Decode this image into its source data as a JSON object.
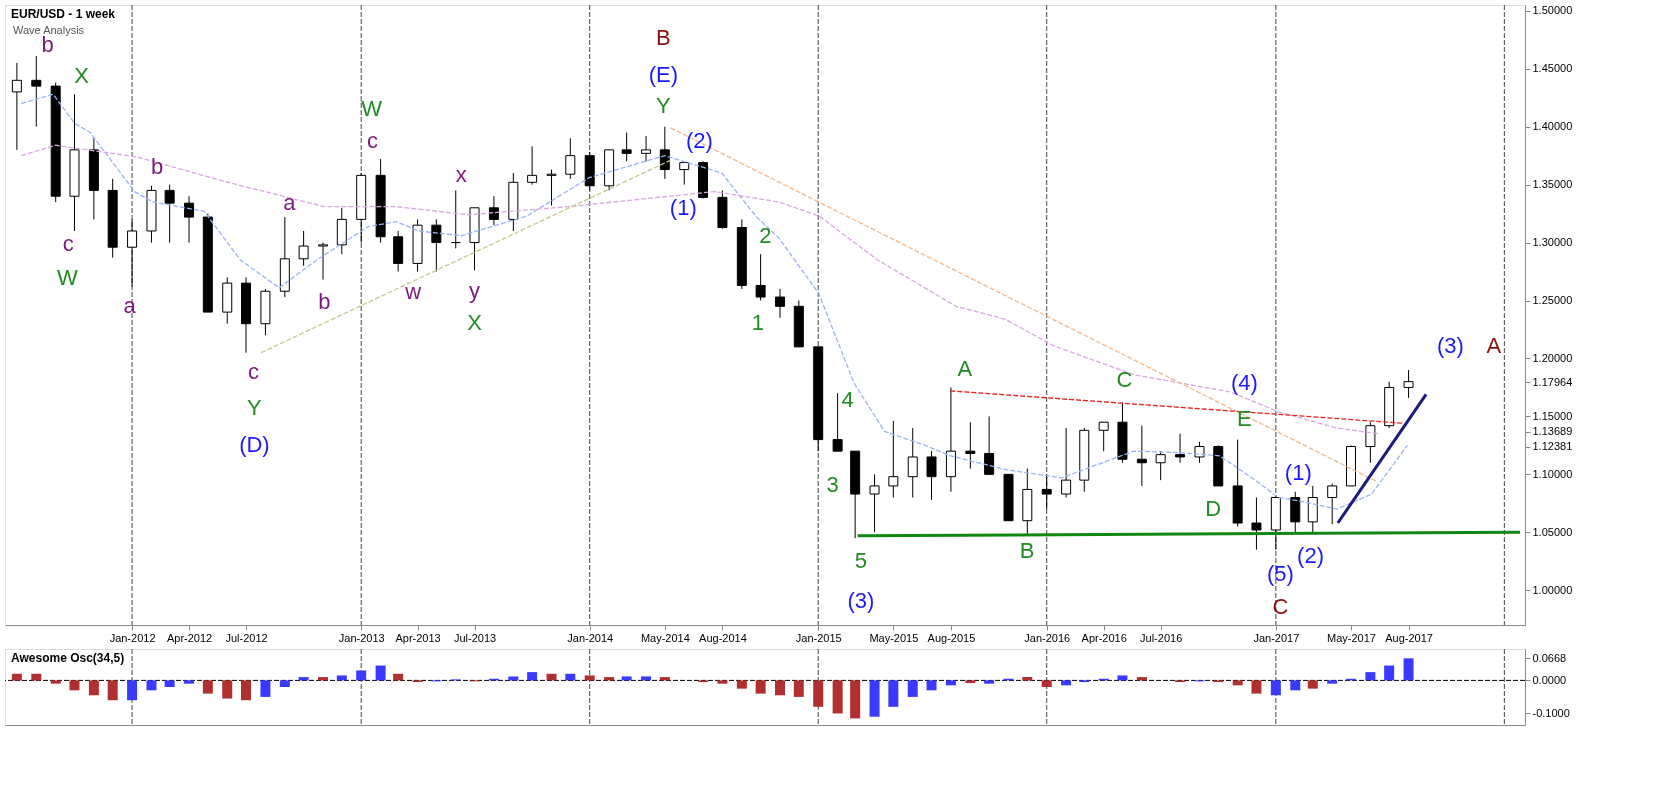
{
  "chart_data": [
    {
      "type": "candlestick",
      "title": "EUR/USD - 1 week",
      "x": [
        "2011-07",
        "2011-08",
        "2011-09",
        "2011-10",
        "2011-11",
        "2011-12",
        "2012-01",
        "2012-02",
        "2012-03",
        "2012-04",
        "2012-05",
        "2012-06",
        "2012-07",
        "2012-08",
        "2012-09",
        "2012-10",
        "2012-11",
        "2012-12",
        "2013-01",
        "2013-02",
        "2013-03",
        "2013-04",
        "2013-05",
        "2013-06",
        "2013-07",
        "2013-08",
        "2013-09",
        "2013-10",
        "2013-11",
        "2013-12",
        "2014-01",
        "2014-02",
        "2014-03",
        "2014-04",
        "2014-05",
        "2014-06",
        "2014-07",
        "2014-08",
        "2014-09",
        "2014-10",
        "2014-11",
        "2014-12",
        "2015-01",
        "2015-02",
        "2015-03",
        "2015-04",
        "2015-05",
        "2015-06",
        "2015-07",
        "2015-08",
        "2015-09",
        "2015-10",
        "2015-11",
        "2015-12",
        "2016-01",
        "2016-02",
        "2016-03",
        "2016-04",
        "2016-05",
        "2016-06",
        "2016-07",
        "2016-08",
        "2016-09",
        "2016-10",
        "2016-11",
        "2016-12",
        "2017-01",
        "2017-02",
        "2017-03",
        "2017-04",
        "2017-05",
        "2017-06",
        "2017-07",
        "2017-08"
      ],
      "ohlc": [
        [
          1.43,
          1.455,
          1.38,
          1.44
        ],
        [
          1.44,
          1.461,
          1.4,
          1.435
        ],
        [
          1.435,
          1.438,
          1.335,
          1.34
        ],
        [
          1.34,
          1.428,
          1.31,
          1.38
        ],
        [
          1.38,
          1.39,
          1.32,
          1.345
        ],
        [
          1.345,
          1.355,
          1.287,
          1.296
        ],
        [
          1.296,
          1.32,
          1.262,
          1.31
        ],
        [
          1.31,
          1.349,
          1.3,
          1.345
        ],
        [
          1.345,
          1.35,
          1.3,
          1.334
        ],
        [
          1.334,
          1.34,
          1.3,
          1.322
        ],
        [
          1.322,
          1.325,
          1.24,
          1.24
        ],
        [
          1.24,
          1.27,
          1.23,
          1.265
        ],
        [
          1.265,
          1.27,
          1.205,
          1.23
        ],
        [
          1.23,
          1.26,
          1.22,
          1.258
        ],
        [
          1.258,
          1.322,
          1.253,
          1.286
        ],
        [
          1.286,
          1.31,
          1.28,
          1.297
        ],
        [
          1.297,
          1.3,
          1.268,
          1.298
        ],
        [
          1.298,
          1.33,
          1.29,
          1.32
        ],
        [
          1.32,
          1.36,
          1.3,
          1.358
        ],
        [
          1.358,
          1.372,
          1.3,
          1.305
        ],
        [
          1.305,
          1.31,
          1.275,
          1.282
        ],
        [
          1.282,
          1.32,
          1.275,
          1.315
        ],
        [
          1.315,
          1.32,
          1.275,
          1.3
        ],
        [
          1.3,
          1.345,
          1.295,
          1.3
        ],
        [
          1.3,
          1.33,
          1.276,
          1.33
        ],
        [
          1.33,
          1.34,
          1.315,
          1.32
        ],
        [
          1.32,
          1.36,
          1.31,
          1.352
        ],
        [
          1.352,
          1.383,
          1.35,
          1.358
        ],
        [
          1.358,
          1.363,
          1.332,
          1.359
        ],
        [
          1.359,
          1.39,
          1.355,
          1.375
        ],
        [
          1.375,
          1.378,
          1.345,
          1.349
        ],
        [
          1.349,
          1.38,
          1.345,
          1.38
        ],
        [
          1.38,
          1.395,
          1.37,
          1.377
        ],
        [
          1.377,
          1.392,
          1.37,
          1.38
        ],
        [
          1.38,
          1.4,
          1.355,
          1.363
        ],
        [
          1.363,
          1.37,
          1.35,
          1.369
        ],
        [
          1.369,
          1.37,
          1.338,
          1.339
        ],
        [
          1.339,
          1.345,
          1.312,
          1.313
        ],
        [
          1.313,
          1.32,
          1.26,
          1.263
        ],
        [
          1.263,
          1.29,
          1.25,
          1.253
        ],
        [
          1.253,
          1.26,
          1.235,
          1.245
        ],
        [
          1.245,
          1.25,
          1.21,
          1.21
        ],
        [
          1.21,
          1.21,
          1.12,
          1.13
        ],
        [
          1.13,
          1.17,
          1.12,
          1.12
        ],
        [
          1.12,
          1.12,
          1.045,
          1.083
        ],
        [
          1.083,
          1.1,
          1.05,
          1.09
        ],
        [
          1.09,
          1.146,
          1.08,
          1.098
        ],
        [
          1.098,
          1.14,
          1.08,
          1.115
        ],
        [
          1.115,
          1.12,
          1.078,
          1.098
        ],
        [
          1.098,
          1.175,
          1.085,
          1.12
        ],
        [
          1.12,
          1.145,
          1.105,
          1.118
        ],
        [
          1.118,
          1.15,
          1.1,
          1.1
        ],
        [
          1.1,
          1.1,
          1.06,
          1.06
        ],
        [
          1.06,
          1.105,
          1.047,
          1.087
        ],
        [
          1.087,
          1.1,
          1.07,
          1.083
        ],
        [
          1.083,
          1.14,
          1.08,
          1.095
        ],
        [
          1.095,
          1.14,
          1.085,
          1.138
        ],
        [
          1.138,
          1.145,
          1.12,
          1.145
        ],
        [
          1.145,
          1.162,
          1.11,
          1.113
        ],
        [
          1.113,
          1.142,
          1.09,
          1.11
        ],
        [
          1.11,
          1.12,
          1.095,
          1.117
        ],
        [
          1.117,
          1.135,
          1.11,
          1.115
        ],
        [
          1.115,
          1.128,
          1.11,
          1.124
        ],
        [
          1.124,
          1.125,
          1.09,
          1.09
        ],
        [
          1.09,
          1.13,
          1.055,
          1.058
        ],
        [
          1.058,
          1.08,
          1.035,
          1.052
        ],
        [
          1.052,
          1.082,
          1.035,
          1.08
        ],
        [
          1.08,
          1.085,
          1.05,
          1.059
        ],
        [
          1.059,
          1.09,
          1.05,
          1.08
        ],
        [
          1.08,
          1.092,
          1.057,
          1.09
        ],
        [
          1.09,
          1.125,
          1.09,
          1.124
        ],
        [
          1.124,
          1.145,
          1.11,
          1.142
        ],
        [
          1.142,
          1.18,
          1.14,
          1.175
        ],
        [
          1.175,
          1.19,
          1.166,
          1.18
        ]
      ],
      "colors": [
        "#ffffff",
        "#000000",
        "#000000",
        "#ffffff",
        "#000000",
        "#000000",
        "#ffffff",
        "#ffffff",
        "#000000",
        "#000000",
        "#000000",
        "#ffffff",
        "#000000",
        "#ffffff",
        "#ffffff",
        "#ffffff",
        "#ffffff",
        "#ffffff",
        "#ffffff",
        "#000000",
        "#000000",
        "#ffffff",
        "#000000",
        "#000000",
        "#ffffff",
        "#000000",
        "#ffffff",
        "#ffffff",
        "#ffffff",
        "#ffffff",
        "#000000",
        "#ffffff",
        "#000000",
        "#ffffff",
        "#000000",
        "#ffffff",
        "#000000",
        "#000000",
        "#000000",
        "#000000",
        "#000000",
        "#000000",
        "#000000",
        "#000000",
        "#000000",
        "#ffffff",
        "#ffffff",
        "#ffffff",
        "#000000",
        "#ffffff",
        "#000000",
        "#000000",
        "#000000",
        "#ffffff",
        "#000000",
        "#ffffff",
        "#ffffff",
        "#ffffff",
        "#000000",
        "#000000",
        "#ffffff",
        "#000000",
        "#ffffff",
        "#000000",
        "#000000",
        "#000000",
        "#ffffff",
        "#000000",
        "#ffffff",
        "#ffffff",
        "#ffffff",
        "#ffffff",
        "#ffffff",
        "#ffffff"
      ],
      "series": [
        {
          "type": "line",
          "color": "#99b3f5",
          "line_style": "dashed",
          "x": [
            "2011-07-08",
            "2011-08-28",
            "2011-10-01",
            "2011-10-26",
            "2012-01-05",
            "2012-02-03",
            "2012-04-25",
            "2012-06-22",
            "2012-08-23",
            "2012-10-22",
            "2013-01-13",
            "2013-02-26",
            "2013-04-03",
            "2013-06-11",
            "2013-09-23",
            "2013-12-31",
            "2014-05-01",
            "2014-07-31",
            "2014-09-23",
            "2014-10-30",
            "2015-01-02",
            "2015-02-27",
            "2015-04-17",
            "2015-06-21",
            "2015-07-31",
            "2015-10-28",
            "2016-01-25",
            "2016-05-19",
            "2016-07-23",
            "2016-10-03",
            "2016-11-29",
            "2017-01-05",
            "2017-02-18",
            "2017-04-08",
            "2017-06-03",
            "2017-07-30"
          ],
          "values": [
            1.42,
            1.428,
            1.403,
            1.395,
            1.344,
            1.335,
            1.327,
            1.285,
            1.261,
            1.285,
            1.314,
            1.318,
            1.31,
            1.306,
            1.323,
            1.356,
            1.375,
            1.36,
            1.323,
            1.304,
            1.256,
            1.179,
            1.137,
            1.125,
            1.116,
            1.104,
            1.097,
            1.12,
            1.119,
            1.116,
            1.095,
            1.08,
            1.076,
            1.07,
            1.083,
            1.125
          ]
        },
        {
          "type": "line",
          "color": "#d8a8e0",
          "line_style": "dashed",
          "x": [
            "2011-07-08",
            "2011-09-01",
            "2012-01-08",
            "2012-05-26",
            "2012-11-03",
            "2013-02-26",
            "2013-06-21",
            "2013-11-28",
            "2014-07-20",
            "2014-10-30",
            "2015-01-02",
            "2015-04-06",
            "2015-08-09",
            "2015-10-26",
            "2016-01-12",
            "2016-05-19",
            "2016-10-21",
            "2017-01-05",
            "2017-04-08",
            "2017-06-14"
          ],
          "values": [
            1.375,
            1.384,
            1.374,
            1.353,
            1.331,
            1.331,
            1.324,
            1.331,
            1.344,
            1.335,
            1.323,
            1.285,
            1.245,
            1.234,
            1.211,
            1.186,
            1.171,
            1.154,
            1.14,
            1.135
          ]
        },
        {
          "type": "line",
          "color": "#c8c890",
          "line_style": "dashed",
          "x": [
            "2012-07-25",
            "2014-05-10"
          ],
          "values": [
            1.205,
            1.371
          ]
        },
        {
          "type": "line",
          "color": "#f5b888",
          "line_style": "dashed",
          "x": [
            "2014-05-10",
            "2017-06-14"
          ],
          "values": [
            1.399,
            1.093
          ]
        },
        {
          "type": "line",
          "color": "#ee2222",
          "line_style": "dashed",
          "x": [
            "2015-07-31",
            "2017-07-25"
          ],
          "values": [
            1.172,
            1.144
          ]
        },
        {
          "type": "line",
          "color": "#118811",
          "line_style": "solid",
          "x": [
            "2015-03-05",
            "2018-01-26"
          ],
          "values": [
            1.047,
            1.05
          ]
        },
        {
          "type": "line",
          "color": "#1a1a80",
          "line_style": "solid",
          "x": [
            "2017-04-10",
            "2017-08-29"
          ],
          "values": [
            1.058,
            1.169
          ]
        }
      ],
      "xlim": [
        "2011-06-20",
        "2018-01-26"
      ],
      "xticks": [
        {
          "value": "2012-01-01",
          "label": "Jan-2012"
        },
        {
          "value": "2012-04-01",
          "label": "Apr-2012"
        },
        {
          "value": "2012-07-01",
          "label": "Jul-2012"
        },
        {
          "value": "2013-01-01",
          "label": "Jan-2013"
        },
        {
          "value": "2013-04-01",
          "label": "Apr-2013"
        },
        {
          "value": "2013-07-01",
          "label": "Jul-2013"
        },
        {
          "value": "2014-01-01",
          "label": "Jan-2014"
        },
        {
          "value": "2014-05-01",
          "label": "May-2014"
        },
        {
          "value": "2014-08-01",
          "label": "Aug-2014"
        },
        {
          "value": "2015-01-01",
          "label": "Jan-2015"
        },
        {
          "value": "2015-05-01",
          "label": "May-2015"
        },
        {
          "value": "2015-08-01",
          "label": "Aug-2015"
        },
        {
          "value": "2016-01-01",
          "label": "Jan-2016"
        },
        {
          "value": "2016-04-01",
          "label": "Apr-2016"
        },
        {
          "value": "2016-07-01",
          "label": "Jul-2016"
        },
        {
          "value": "2017-01-01",
          "label": "Jan-2017"
        },
        {
          "value": "2017-05-01",
          "label": "May-2017"
        },
        {
          "value": "2017-08-01",
          "label": "Aug-2017"
        }
      ],
      "ylim": [
        0.97,
        1.505
      ],
      "yticks": [
        {
          "value": 1.0,
          "label": "1.00000"
        },
        {
          "value": 1.05,
          "label": "1.05000"
        },
        {
          "value": 1.1,
          "label": "1.10000"
        },
        {
          "value": 1.12381,
          "label": "1.12381"
        },
        {
          "value": 1.13689,
          "label": "1.13689"
        },
        {
          "value": 1.15,
          "label": "1.15000"
        },
        {
          "value": 1.17964,
          "label": "1.17964"
        },
        {
          "value": 1.2,
          "label": "1.20000"
        },
        {
          "value": 1.25,
          "label": "1.25000"
        },
        {
          "value": 1.3,
          "label": "1.30000"
        },
        {
          "value": 1.35,
          "label": "1.35000"
        },
        {
          "value": 1.4,
          "label": "1.40000"
        },
        {
          "value": 1.45,
          "label": "1.45000"
        },
        {
          "value": 1.5,
          "label": "1.50000"
        }
      ],
      "grid": false,
      "ref_lines": [
        {
          "axis": "x",
          "value": "2012-01-01",
          "line_style": "dashed",
          "color": "#444444"
        },
        {
          "axis": "x",
          "value": "2013-01-01",
          "line_style": "dashed",
          "color": "#444444"
        },
        {
          "axis": "x",
          "value": "2014-01-01",
          "line_style": "dashed",
          "color": "#444444"
        },
        {
          "axis": "x",
          "value": "2015-01-01",
          "line_style": "dashed",
          "color": "#444444"
        },
        {
          "axis": "x",
          "value": "2016-01-01",
          "line_style": "dashed",
          "color": "#444444"
        },
        {
          "axis": "x",
          "value": "2017-01-01",
          "line_style": "dashed",
          "color": "#444444"
        },
        {
          "axis": "x",
          "value": "2018-01-01",
          "line_style": "dashed",
          "color": "#444444"
        }
      ],
      "annotations": [
        "Wave Analysis",
        "b",
        "X",
        "c",
        "W",
        "a",
        "b",
        "c",
        "Y",
        "(D)",
        "a",
        "b",
        "W",
        "c",
        "w",
        "x",
        "y",
        "X",
        "B",
        "(E)",
        "Y",
        "(2)",
        "(1)",
        "2",
        "1",
        "4",
        "3",
        "5",
        "(3)",
        "A",
        "B",
        "C",
        "(4)",
        "E",
        "D",
        "(1)",
        "(2)",
        "(5)",
        "C",
        "(3)",
        "A"
      ]
    },
    {
      "type": "bar",
      "title": "Awesome Osc(34,5)",
      "x": [
        "2011-07",
        "2011-08",
        "2011-09",
        "2011-10",
        "2011-11",
        "2011-12",
        "2012-01",
        "2012-02",
        "2012-03",
        "2012-04",
        "2012-05",
        "2012-06",
        "2012-07",
        "2012-08",
        "2012-09",
        "2012-10",
        "2012-11",
        "2012-12",
        "2013-01",
        "2013-02",
        "2013-03",
        "2013-04",
        "2013-05",
        "2013-06",
        "2013-07",
        "2013-08",
        "2013-09",
        "2013-10",
        "2013-11",
        "2013-12",
        "2014-01",
        "2014-02",
        "2014-03",
        "2014-04",
        "2014-05",
        "2014-06",
        "2014-07",
        "2014-08",
        "2014-09",
        "2014-10",
        "2014-11",
        "2014-12",
        "2015-01",
        "2015-02",
        "2015-03",
        "2015-04",
        "2015-05",
        "2015-06",
        "2015-07",
        "2015-08",
        "2015-09",
        "2015-10",
        "2015-11",
        "2015-12",
        "2016-01",
        "2016-02",
        "2016-03",
        "2016-04",
        "2016-05",
        "2016-06",
        "2016-07",
        "2016-08",
        "2016-09",
        "2016-10",
        "2016-11",
        "2016-12",
        "2017-01",
        "2017-02",
        "2017-03",
        "2017-04",
        "2017-05",
        "2017-06",
        "2017-07",
        "2017-08"
      ],
      "values": [
        0.02,
        0.02,
        -0.01,
        -0.03,
        -0.045,
        -0.06,
        -0.06,
        -0.03,
        -0.02,
        -0.01,
        -0.04,
        -0.055,
        -0.06,
        -0.05,
        -0.02,
        0.01,
        0.01,
        0.015,
        0.03,
        0.045,
        0.02,
        -0.005,
        -0.003,
        0.003,
        -0.003,
        0.005,
        0.012,
        0.025,
        0.02,
        0.02,
        0.015,
        0.01,
        0.012,
        0.012,
        0.01,
        0.0,
        -0.005,
        -0.01,
        -0.025,
        -0.04,
        -0.045,
        -0.05,
        -0.08,
        -0.1,
        -0.115,
        -0.11,
        -0.08,
        -0.05,
        -0.03,
        -0.015,
        -0.008,
        -0.01,
        0.005,
        0.01,
        -0.02,
        -0.015,
        -0.005,
        0.005,
        0.015,
        0.01,
        0.0,
        -0.005,
        -0.003,
        -0.005,
        -0.015,
        -0.04,
        -0.045,
        -0.03,
        -0.025,
        -0.01,
        0.005,
        0.025,
        0.045,
        0.0668
      ],
      "colors": [
        "#b03030",
        "#b03030",
        "#b03030",
        "#b03030",
        "#b03030",
        "#b03030",
        "#3a3aff",
        "#3a3aff",
        "#3a3aff",
        "#3a3aff",
        "#b03030",
        "#b03030",
        "#b03030",
        "#3a3aff",
        "#3a3aff",
        "#3a3aff",
        "#b03030",
        "#3a3aff",
        "#3a3aff",
        "#3a3aff",
        "#b03030",
        "#b03030",
        "#3a3aff",
        "#3a3aff",
        "#b03030",
        "#3a3aff",
        "#3a3aff",
        "#3a3aff",
        "#b03030",
        "#3a3aff",
        "#b03030",
        "#b03030",
        "#3a3aff",
        "#3a3aff",
        "#b03030",
        "#b03030",
        "#b03030",
        "#b03030",
        "#b03030",
        "#b03030",
        "#b03030",
        "#b03030",
        "#b03030",
        "#b03030",
        "#b03030",
        "#3a3aff",
        "#3a3aff",
        "#3a3aff",
        "#3a3aff",
        "#3a3aff",
        "#b03030",
        "#3a3aff",
        "#3a3aff",
        "#b03030",
        "#b03030",
        "#3a3aff",
        "#3a3aff",
        "#3a3aff",
        "#3a3aff",
        "#b03030",
        "#b03030",
        "#b03030",
        "#3a3aff",
        "#b03030",
        "#b03030",
        "#b03030",
        "#3a3aff",
        "#3a3aff",
        "#b03030",
        "#3a3aff",
        "#3a3aff",
        "#3a3aff",
        "#3a3aff",
        "#3a3aff"
      ],
      "xlim": [
        "2011-06-20",
        "2018-01-26"
      ],
      "ylim": [
        -0.135,
        0.095
      ],
      "yticks": [
        {
          "value": -0.1,
          "label": "-0.1000"
        },
        {
          "value": 0.0,
          "label": "0.0000"
        },
        {
          "value": 0.0668,
          "label": "0.0668"
        }
      ],
      "tick_labels": "y",
      "grid": false,
      "ref_lines": [
        {
          "axis": "y",
          "value": 0.0,
          "line_style": "dashed",
          "color": "#000000"
        },
        {
          "axis": "x",
          "value": "2012-01-01",
          "line_style": "dashed",
          "color": "#444444"
        },
        {
          "axis": "x",
          "value": "2013-01-01",
          "line_style": "dashed",
          "color": "#444444"
        },
        {
          "axis": "x",
          "value": "2014-01-01",
          "line_style": "dashed",
          "color": "#444444"
        },
        {
          "axis": "x",
          "value": "2015-01-01",
          "line_style": "dashed",
          "color": "#444444"
        },
        {
          "axis": "x",
          "value": "2016-01-01",
          "line_style": "dashed",
          "color": "#444444"
        },
        {
          "axis": "x",
          "value": "2017-01-01",
          "line_style": "dashed",
          "color": "#444444"
        },
        {
          "axis": "x",
          "value": "2018-01-01",
          "line_style": "dashed",
          "color": "#444444"
        }
      ]
    }
  ]
}
